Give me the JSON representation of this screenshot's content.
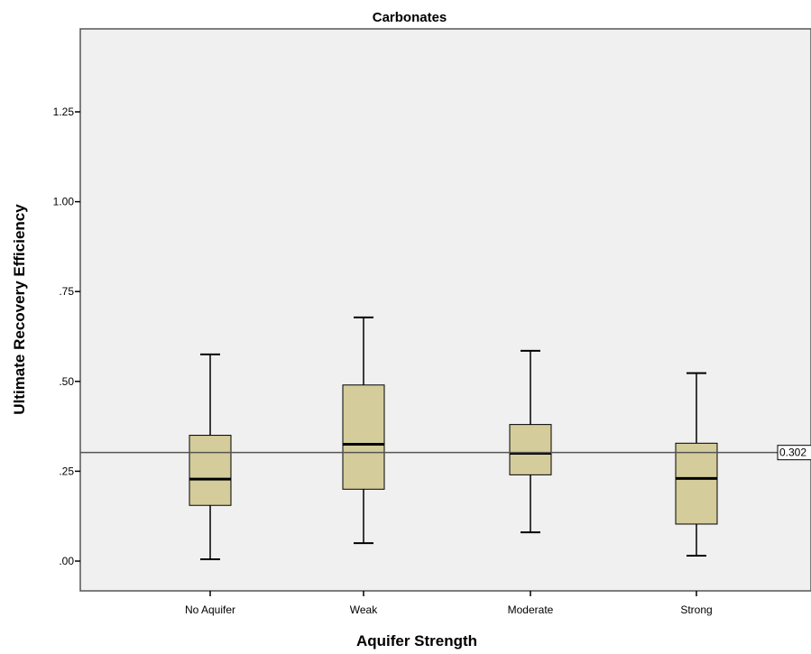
{
  "chart_data": {
    "type": "boxplot",
    "title": "Carbonates",
    "xlabel": "Aquifer Strength",
    "ylabel": "Ultimate Recovery Efficiency",
    "ylim": [
      -0.08,
      1.49
    ],
    "yticks": [
      0.0,
      0.25,
      0.5,
      0.75,
      1.0,
      1.25
    ],
    "ytick_labels": [
      ".00",
      ".25",
      ".50",
      ".75",
      "1.00",
      "1.25"
    ],
    "categories": [
      "No Aquifer",
      "Weak",
      "Moderate",
      "Strong"
    ],
    "boxes": [
      {
        "category": "No Aquifer",
        "min": 0.005,
        "q1": 0.155,
        "median": 0.228,
        "q3": 0.35,
        "max": 0.575
      },
      {
        "category": "Weak",
        "min": 0.05,
        "q1": 0.2,
        "median": 0.325,
        "q3": 0.49,
        "max": 0.678
      },
      {
        "category": "Moderate",
        "min": 0.08,
        "q1": 0.24,
        "median": 0.3,
        "q3": 0.38,
        "max": 0.585
      },
      {
        "category": "Strong",
        "min": 0.015,
        "q1": 0.103,
        "median": 0.23,
        "q3": 0.328,
        "max": 0.523
      }
    ],
    "reference_line": {
      "value": 0.302,
      "label": "0.302"
    },
    "grid": false,
    "box_fill": "#d4cc9b",
    "plot_background": "#f0f0f0"
  }
}
